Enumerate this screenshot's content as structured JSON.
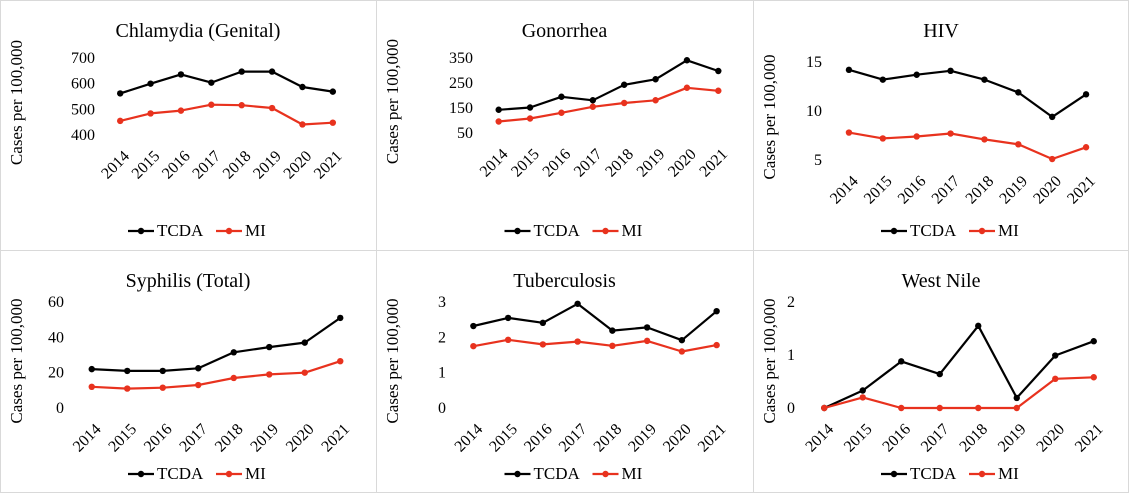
{
  "chart_data": [
    {
      "type": "line",
      "title": "Chlamydia (Genital)",
      "ylabel": "Cases per 100,000",
      "xlabel": "",
      "categories": [
        "2014",
        "2015",
        "2016",
        "2017",
        "2018",
        "2019",
        "2020",
        "2021"
      ],
      "ylim": [
        400,
        700
      ],
      "yticks": [
        400,
        500,
        600,
        700
      ],
      "series": [
        {
          "name": "TCDA",
          "color": "#000000",
          "values": [
            562,
            600,
            636,
            604,
            647,
            647,
            587,
            569
          ]
        },
        {
          "name": "MI",
          "color": "#e8321e",
          "values": [
            455,
            484,
            495,
            518,
            516,
            505,
            441,
            448
          ]
        }
      ],
      "legend": "bottom"
    },
    {
      "type": "line",
      "title": "Gonorrhea",
      "ylabel": "Cases per 100,000",
      "xlabel": "",
      "categories": [
        "2014",
        "2015",
        "2016",
        "2017",
        "2018",
        "2019",
        "2020",
        "2021"
      ],
      "ylim": [
        50,
        350
      ],
      "yticks": [
        50,
        150,
        250,
        350
      ],
      "series": [
        {
          "name": "TCDA",
          "color": "#000000",
          "values": [
            143,
            152,
            195,
            181,
            243,
            265,
            341,
            298
          ]
        },
        {
          "name": "MI",
          "color": "#e8321e",
          "values": [
            96,
            108,
            131,
            155,
            170,
            181,
            231,
            219
          ]
        }
      ],
      "legend": "bottom"
    },
    {
      "type": "line",
      "title": "HIV",
      "ylabel": "Cases per 100,000",
      "xlabel": "",
      "categories": [
        "2014",
        "2015",
        "2016",
        "2017",
        "2018",
        "2019",
        "2020",
        "2021"
      ],
      "ylim": [
        5,
        15
      ],
      "yticks": [
        5,
        10,
        15
      ],
      "series": [
        {
          "name": "TCDA",
          "color": "#000000",
          "values": [
            14.2,
            13.2,
            13.7,
            14.1,
            13.2,
            11.9,
            9.4,
            11.7
          ]
        },
        {
          "name": "MI",
          "color": "#e8321e",
          "values": [
            7.8,
            7.2,
            7.4,
            7.7,
            7.1,
            6.6,
            5.1,
            6.3
          ]
        }
      ],
      "legend": "bottom"
    },
    {
      "type": "line",
      "title": "Syphilis (Total)",
      "ylabel": "Cases per 100,000",
      "xlabel": "",
      "categories": [
        "2014",
        "2015",
        "2016",
        "2017",
        "2018",
        "2019",
        "2020",
        "2021"
      ],
      "ylim": [
        0,
        60
      ],
      "yticks": [
        0,
        20,
        40,
        60
      ],
      "series": [
        {
          "name": "TCDA",
          "color": "#000000",
          "values": [
            22,
            21,
            21,
            22.5,
            31.5,
            34.5,
            37,
            51
          ]
        },
        {
          "name": "MI",
          "color": "#e8321e",
          "values": [
            12,
            11,
            11.5,
            13,
            17,
            19,
            20,
            26.5
          ]
        }
      ],
      "legend": "bottom"
    },
    {
      "type": "line",
      "title": "Tuberculosis",
      "ylabel": "Cases per 100,000",
      "xlabel": "",
      "categories": [
        "2014",
        "2015",
        "2016",
        "2017",
        "2018",
        "2019",
        "2020",
        "2021"
      ],
      "ylim": [
        0,
        3
      ],
      "yticks": [
        0,
        1,
        2,
        3
      ],
      "series": [
        {
          "name": "TCDA",
          "color": "#000000",
          "values": [
            2.32,
            2.55,
            2.41,
            2.95,
            2.19,
            2.28,
            1.92,
            2.74
          ]
        },
        {
          "name": "MI",
          "color": "#e8321e",
          "values": [
            1.75,
            1.93,
            1.8,
            1.88,
            1.76,
            1.9,
            1.6,
            1.78
          ]
        }
      ],
      "legend": "bottom"
    },
    {
      "type": "line",
      "title": "West Nile",
      "ylabel": "Cases per 100,000",
      "xlabel": "",
      "categories": [
        "2014",
        "2015",
        "2016",
        "2017",
        "2018",
        "2019",
        "2020",
        "2021"
      ],
      "ylim": [
        0,
        2
      ],
      "yticks": [
        0,
        1,
        2
      ],
      "series": [
        {
          "name": "TCDA",
          "color": "#000000",
          "values": [
            0,
            0.33,
            0.88,
            0.64,
            1.55,
            0.19,
            0.99,
            1.26
          ]
        },
        {
          "name": "MI",
          "color": "#e8321e",
          "values": [
            0,
            0.2,
            0,
            0,
            0,
            0,
            0.55,
            0.58
          ]
        }
      ],
      "legend": "bottom"
    }
  ]
}
